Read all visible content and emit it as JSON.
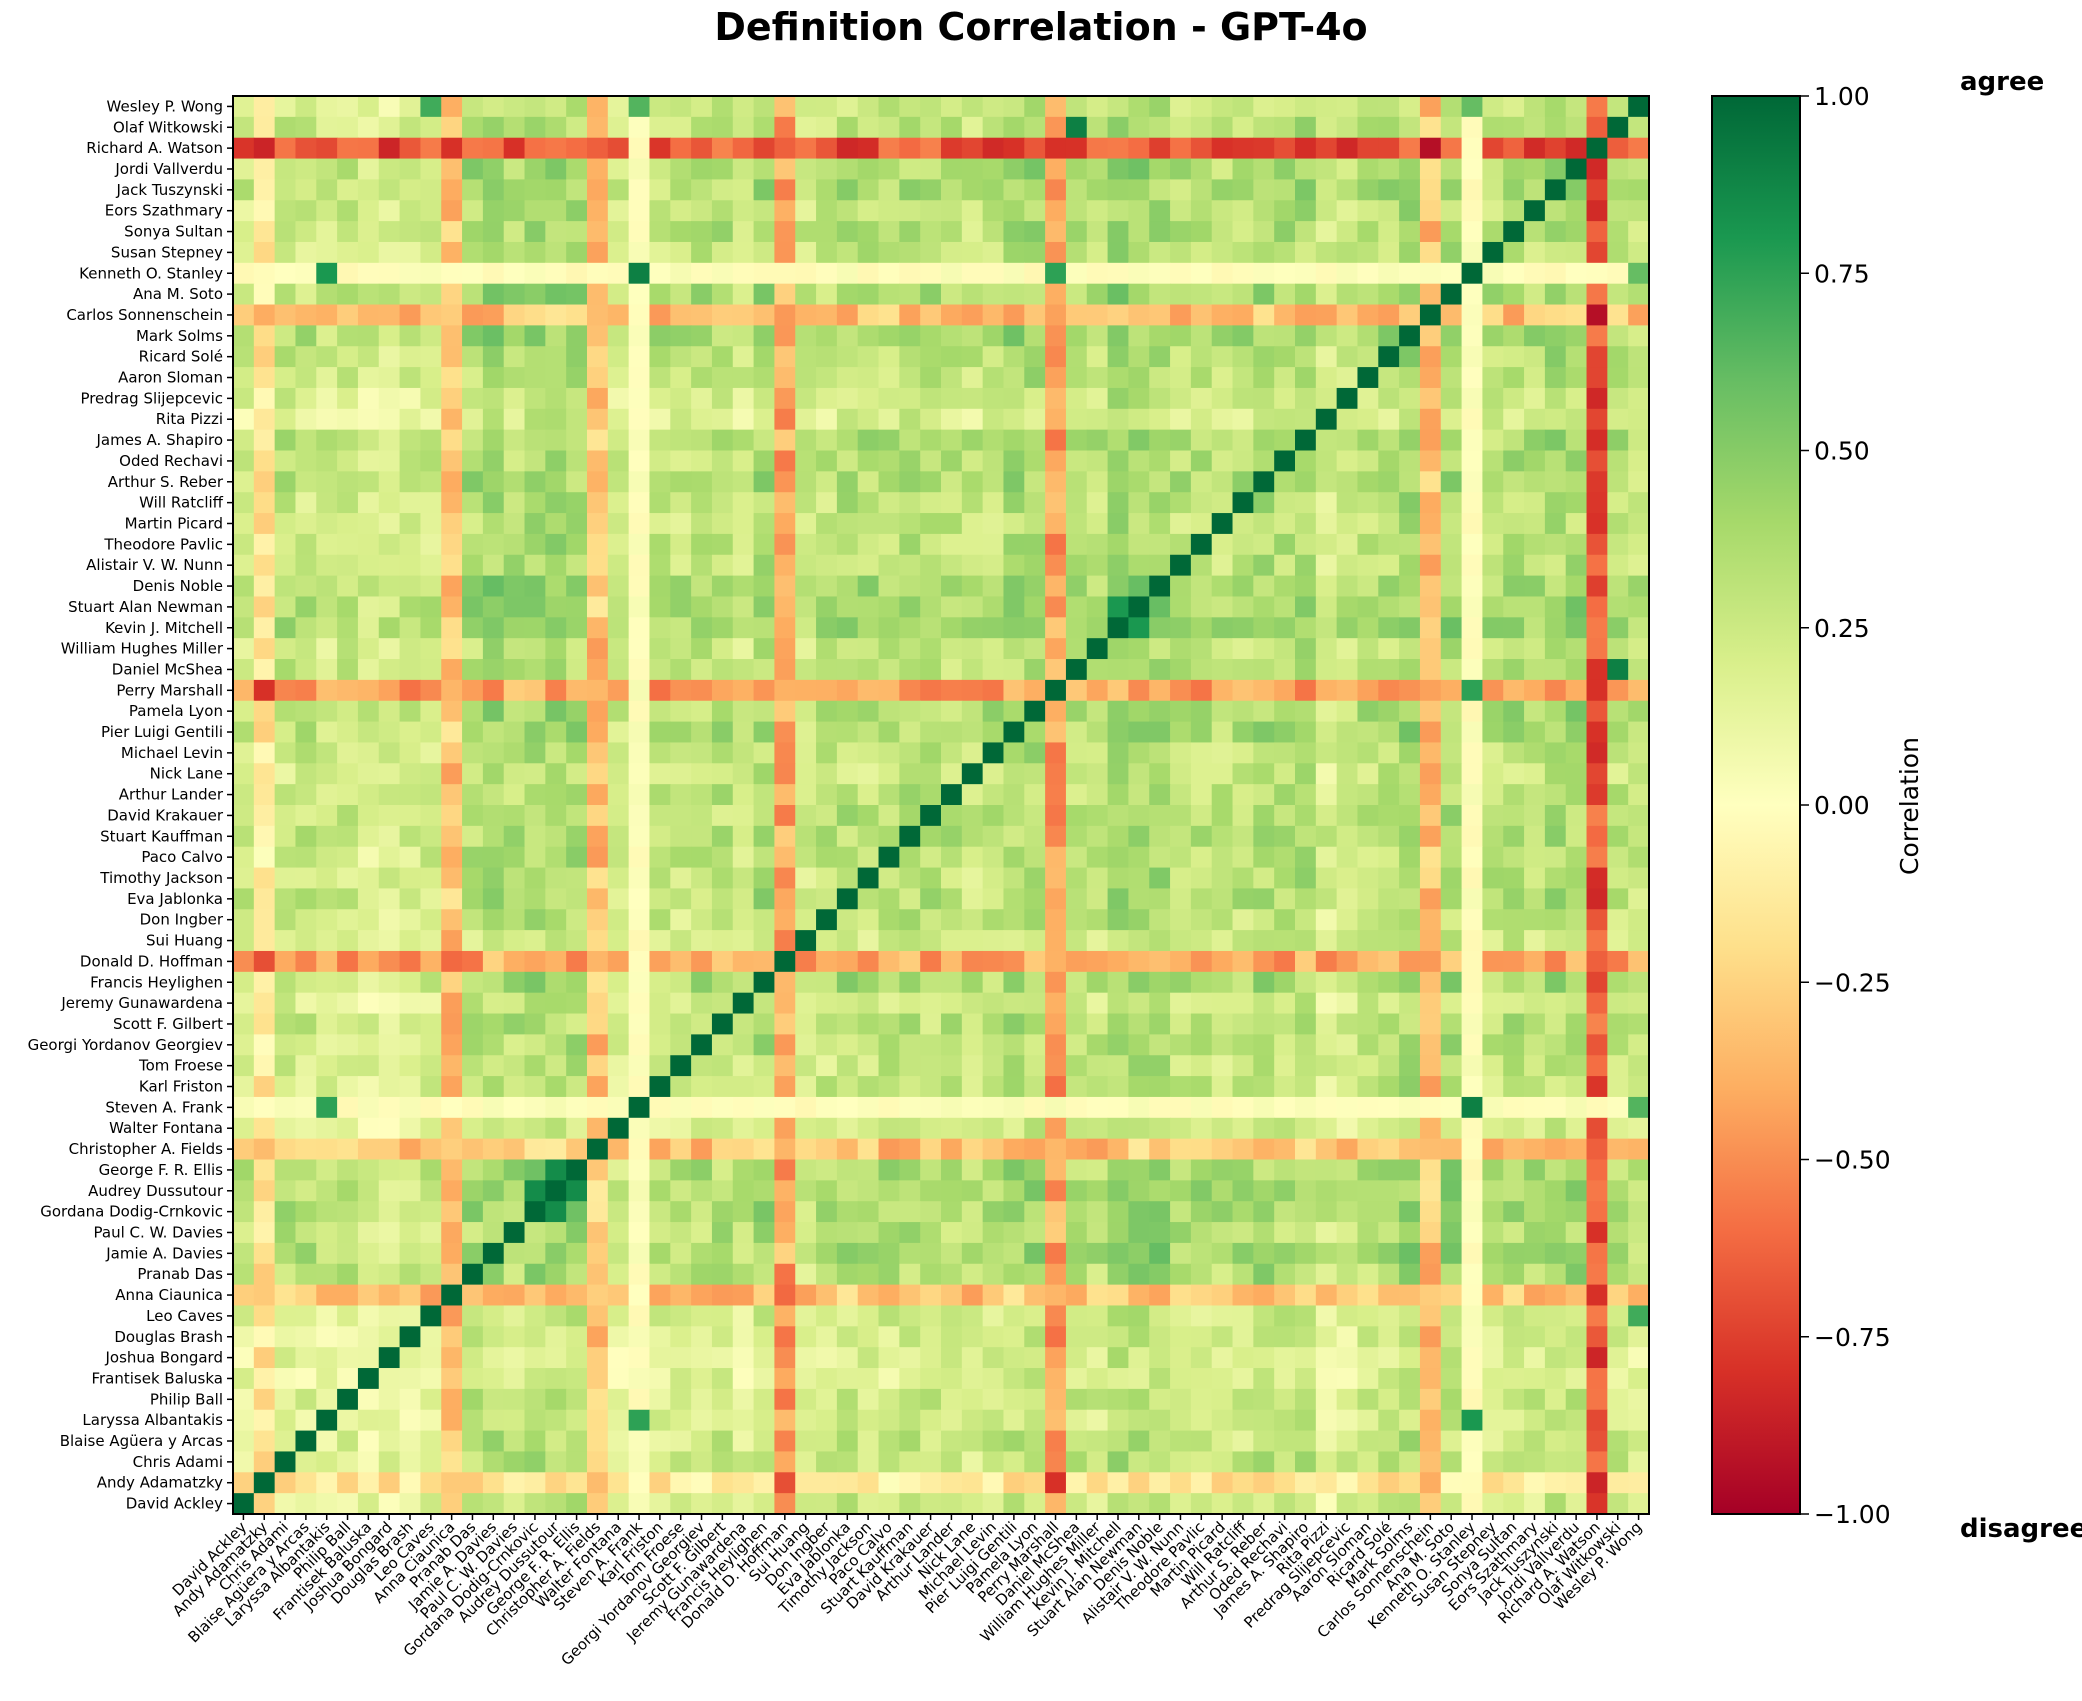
{
  "chart_data": {
    "type": "heatmap",
    "title": "Definition Correlation - GPT-4o",
    "colorbar_label": "Correlation",
    "colorbar_ticks": [
      "1.00",
      "0.75",
      "0.50",
      "0.25",
      "0.00",
      "−0.25",
      "−0.50",
      "−0.75",
      "−1.00"
    ],
    "colorbar_tick_values": [
      1.0,
      0.75,
      0.5,
      0.25,
      0.0,
      -0.25,
      -0.5,
      -0.75,
      -1.0
    ],
    "value_range": [
      -1.0,
      1.0
    ],
    "colormap": [
      "#a50026",
      "#d73027",
      "#f46d43",
      "#fdae61",
      "#fee08b",
      "#ffffbf",
      "#d9ef8b",
      "#a6d96a",
      "#66bd63",
      "#1a9850",
      "#006837"
    ],
    "top_label": "agree",
    "bottom_label": "disagree",
    "labels": [
      "David Ackley",
      "Andy Adamatzky",
      "Chris Adami",
      "Blaise Agüera y Arcas",
      "Laryssa Albantakis",
      "Philip Ball",
      "Frantisek Baluska",
      "Joshua Bongard",
      "Douglas Brash",
      "Leo Caves",
      "Anna Ciaunica",
      "Pranab Das",
      "Jamie A. Davies",
      "Paul C. W. Davies",
      "Gordana Dodig-Crnkovic",
      "Audrey Dussutour",
      "George F. R. Ellis",
      "Christopher A. Fields",
      "Walter Fontana",
      "Steven A. Frank",
      "Karl Friston",
      "Tom Froese",
      "Georgi Yordanov Georgiev",
      "Scott F. Gilbert",
      "Jeremy Gunawardena",
      "Francis Heylighen",
      "Donald D. Hoffman",
      "Sui Huang",
      "Don Ingber",
      "Eva Jablonka",
      "Timothy Jackson",
      "Paco Calvo",
      "Stuart Kauffman",
      "David Krakauer",
      "Arthur Lander",
      "Nick Lane",
      "Michael Levin",
      "Pier Luigi Gentili",
      "Pamela Lyon",
      "Perry Marshall",
      "Daniel McShea",
      "William Hughes Miller",
      "Kevin J. Mitchell",
      "Stuart Alan Newman",
      "Denis Noble",
      "Alistair V. W. Nunn",
      "Theodore Pavlic",
      "Martin Picard",
      "Will Ratcliff",
      "Arthur S. Reber",
      "Oded Rechavi",
      "James A. Shapiro",
      "Rita Pizzi",
      "Predrag Slijepcevic",
      "Aaron Sloman",
      "Ricard Solé",
      "Mark Solms",
      "Carlos Sonnenschein",
      "Ana M. Soto",
      "Kenneth O. Stanley",
      "Susan Stepney",
      "Sonya Sultan",
      "Eors Szathmary",
      "Jack Tuszynski",
      "Jordi Vallverdu",
      "Richard A. Watson",
      "Olaf Witkowski",
      "Wesley P. Wong"
    ],
    "row_profiles": [
      0.15,
      -0.15,
      0.25,
      0.2,
      0.15,
      0.2,
      0.05,
      0.05,
      0.1,
      0.15,
      -0.3,
      0.35,
      0.45,
      0.35,
      0.45,
      0.45,
      0.4,
      -0.3,
      0.1,
      0.0,
      0.25,
      0.25,
      0.3,
      0.3,
      0.15,
      0.4,
      -0.4,
      0.15,
      0.25,
      0.35,
      0.3,
      0.3,
      0.35,
      0.3,
      0.3,
      0.2,
      0.3,
      0.4,
      0.4,
      -0.4,
      0.3,
      0.25,
      0.5,
      0.45,
      0.45,
      0.3,
      0.3,
      0.25,
      0.3,
      0.4,
      0.35,
      0.4,
      0.1,
      0.2,
      0.3,
      0.35,
      0.45,
      -0.3,
      0.4,
      0.0,
      0.3,
      0.35,
      0.3,
      0.4,
      0.4,
      -0.6,
      0.3,
      0.2
    ],
    "row_strengths": [
      0.6,
      0.8,
      0.6,
      0.6,
      0.5,
      0.6,
      0.5,
      0.45,
      0.5,
      0.5,
      0.75,
      0.7,
      0.7,
      0.7,
      0.75,
      0.75,
      0.75,
      0.75,
      0.4,
      0.0,
      0.6,
      0.6,
      0.6,
      0.65,
      0.4,
      0.75,
      0.8,
      0.45,
      0.6,
      0.65,
      0.6,
      0.6,
      0.65,
      0.6,
      0.6,
      0.55,
      0.6,
      0.7,
      0.7,
      0.8,
      0.5,
      0.55,
      0.7,
      0.7,
      0.7,
      0.55,
      0.55,
      0.5,
      0.55,
      0.65,
      0.6,
      0.7,
      0.4,
      0.5,
      0.5,
      0.6,
      0.7,
      0.75,
      0.7,
      0.0,
      0.55,
      0.65,
      0.55,
      0.7,
      0.7,
      0.9,
      0.5,
      0.45
    ],
    "diagonal_value": 1.0,
    "special_pairs": [
      {
        "a": "Steven A. Frank",
        "b": "Kenneth O. Stanley",
        "value": 0.9
      },
      {
        "a": "Steven A. Frank",
        "b": "Laryssa Albantakis",
        "value": 0.75
      },
      {
        "a": "Steven A. Frank",
        "b": "Wesley P. Wong",
        "value": 0.65
      },
      {
        "a": "Kenneth O. Stanley",
        "b": "Laryssa Albantakis",
        "value": 0.8
      },
      {
        "a": "Kenneth O. Stanley",
        "b": "Perry Marshall",
        "value": 0.75
      },
      {
        "a": "Kenneth O. Stanley",
        "b": "Wesley P. Wong",
        "value": 0.6
      },
      {
        "a": "Olaf Witkowski",
        "b": "Daniel McShea",
        "value": 0.9
      },
      {
        "a": "Wesley P. Wong",
        "b": "Leo Caves",
        "value": 0.7
      },
      {
        "a": "Richard A. Watson",
        "b": "Anna Ciaunica",
        "value": -0.8
      },
      {
        "a": "Richard A. Watson",
        "b": "Perry Marshall",
        "value": -0.8
      },
      {
        "a": "Richard A. Watson",
        "b": "Andy Adamatzky",
        "value": -0.85
      },
      {
        "a": "Donald D. Hoffman",
        "b": "Andy Adamatzky",
        "value": -0.7
      },
      {
        "a": "Perry Marshall",
        "b": "Andy Adamatzky",
        "value": -0.8
      },
      {
        "a": "Audrey Dussutour",
        "b": "George F. R. Ellis",
        "value": 0.85
      },
      {
        "a": "Gordana Dodig-Crnkovic",
        "b": "Audrey Dussutour",
        "value": 0.85
      },
      {
        "a": "Kevin J. Mitchell",
        "b": "Stuart Alan Newman",
        "value": 0.8
      }
    ]
  }
}
